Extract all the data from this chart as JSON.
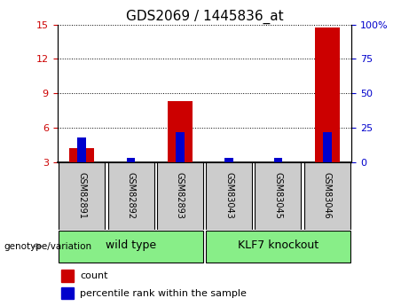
{
  "title": "GDS2069 / 1445836_at",
  "samples": [
    "GSM82891",
    "GSM82892",
    "GSM82893",
    "GSM83043",
    "GSM83045",
    "GSM83046"
  ],
  "count_values": [
    4.2,
    3.0,
    8.3,
    3.0,
    3.0,
    14.7
  ],
  "percentile_values": [
    18,
    3,
    22,
    3,
    3,
    22
  ],
  "ylim_left": [
    3,
    15
  ],
  "ylim_right": [
    0,
    100
  ],
  "yticks_left": [
    3,
    6,
    9,
    12,
    15
  ],
  "yticks_right": [
    0,
    25,
    50,
    75,
    100
  ],
  "ytick_labels_right": [
    "0",
    "25",
    "50",
    "75",
    "100%"
  ],
  "left_color": "#cc0000",
  "right_color": "#0000cc",
  "groups": [
    {
      "label": "wild type",
      "indices": [
        0,
        1,
        2
      ],
      "color": "#88ee88"
    },
    {
      "label": "KLF7 knockout",
      "indices": [
        3,
        4,
        5
      ],
      "color": "#88ee88"
    }
  ],
  "group_label": "genotype/variation",
  "legend_count": "count",
  "legend_percentile": "percentile rank within the sample",
  "axis_bg": "#ffffff",
  "sample_box_color": "#cccccc"
}
